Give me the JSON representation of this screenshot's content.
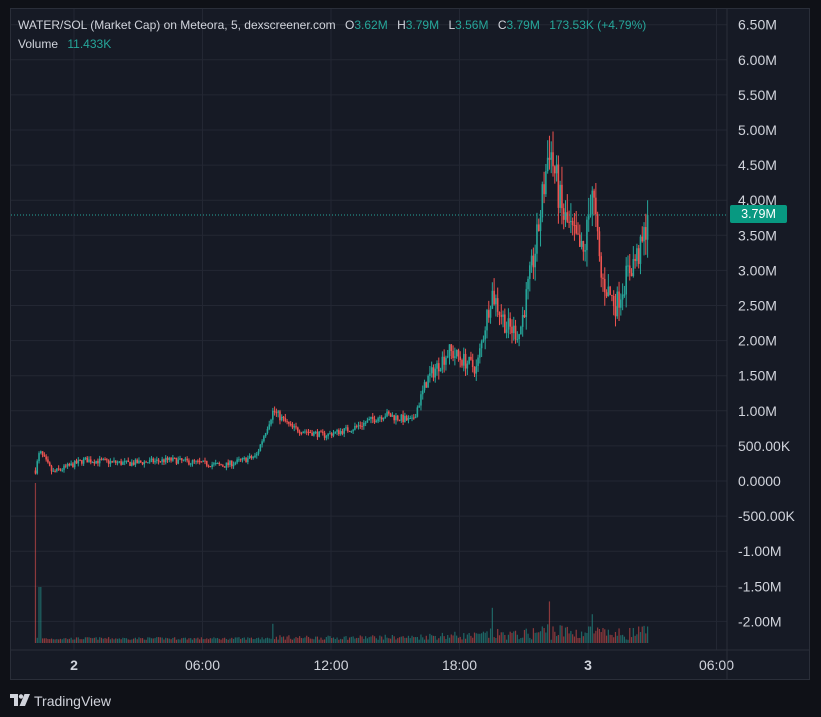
{
  "legend": {
    "title": "WATER/SOL (Market Cap) on Meteora, 5, dexscreener.com",
    "o_label": "O",
    "o_value": "3.62M",
    "h_label": "H",
    "h_value": "3.79M",
    "l_label": "L",
    "l_value": "3.56M",
    "c_label": "C",
    "c_value": "3.79M",
    "change": "173.53K (+4.79%)",
    "volume_label": "Volume",
    "volume_value": "11.433K"
  },
  "last_price_label": "3.79M",
  "footer": {
    "brand": "TradingView"
  },
  "colors": {
    "up": "#26a69a",
    "down": "#ef5350",
    "background": "#161a25",
    "grid": "#232733",
    "text": "#d1d4dc"
  },
  "chart_data": {
    "type": "candlestick",
    "y_tick_labels": [
      "6.50M",
      "6.00M",
      "5.50M",
      "5.00M",
      "4.50M",
      "4.00M",
      "3.50M",
      "3.00M",
      "2.50M",
      "2.00M",
      "1.50M",
      "1.00M",
      "500.00K",
      "0.0000",
      "-500.00K",
      "-1.00M",
      "-1.50M",
      "-2.00M"
    ],
    "y_tick_values": [
      6500000,
      6000000,
      5500000,
      5000000,
      4500000,
      4000000,
      3500000,
      3000000,
      2500000,
      2000000,
      1500000,
      1000000,
      500000,
      0,
      -500000,
      -1000000,
      -1500000,
      -2000000
    ],
    "ylim": [
      -2400000,
      6800000
    ],
    "x_tick_labels": [
      "2",
      "06:00",
      "12:00",
      "18:00",
      "3",
      "06:00"
    ],
    "x_tick_hours": [
      0,
      6,
      12,
      18,
      24,
      30
    ],
    "xlim_hours": [
      -2.9,
      31.8
    ],
    "last_price": 3790000,
    "series": [
      {
        "name": "Volume",
        "axis": "overlay"
      }
    ],
    "price_anchors": [
      {
        "t": -1.8,
        "v": 150000
      },
      {
        "t": -1.6,
        "v": 420000
      },
      {
        "t": -1.0,
        "v": 120000
      },
      {
        "t": 0.5,
        "v": 300000
      },
      {
        "t": 2.5,
        "v": 250000
      },
      {
        "t": 4.5,
        "v": 300000
      },
      {
        "t": 7.0,
        "v": 220000
      },
      {
        "t": 8.5,
        "v": 350000
      },
      {
        "t": 9.3,
        "v": 1000000
      },
      {
        "t": 10.2,
        "v": 750000
      },
      {
        "t": 11.7,
        "v": 650000
      },
      {
        "t": 13.0,
        "v": 750000
      },
      {
        "t": 14.5,
        "v": 950000
      },
      {
        "t": 15.8,
        "v": 850000
      },
      {
        "t": 16.5,
        "v": 1450000
      },
      {
        "t": 17.5,
        "v": 1850000
      },
      {
        "t": 18.8,
        "v": 1600000
      },
      {
        "t": 19.5,
        "v": 2700000
      },
      {
        "t": 20.2,
        "v": 2200000
      },
      {
        "t": 20.8,
        "v": 2100000
      },
      {
        "t": 21.6,
        "v": 3400000
      },
      {
        "t": 22.2,
        "v": 4800000
      },
      {
        "t": 22.8,
        "v": 3800000
      },
      {
        "t": 23.8,
        "v": 3200000
      },
      {
        "t": 24.2,
        "v": 4200000
      },
      {
        "t": 24.6,
        "v": 2900000
      },
      {
        "t": 25.3,
        "v": 2500000
      },
      {
        "t": 25.9,
        "v": 3000000
      },
      {
        "t": 26.5,
        "v": 3300000
      },
      {
        "t": 26.8,
        "v": 3790000
      }
    ],
    "volume_spikes": [
      {
        "t": -1.8,
        "v": 1.0
      },
      {
        "t": -1.6,
        "v": 0.35
      },
      {
        "t": 9.3,
        "v": 0.12
      },
      {
        "t": 19.5,
        "v": 0.22
      },
      {
        "t": 22.2,
        "v": 0.26
      },
      {
        "t": 24.2,
        "v": 0.18
      }
    ]
  }
}
